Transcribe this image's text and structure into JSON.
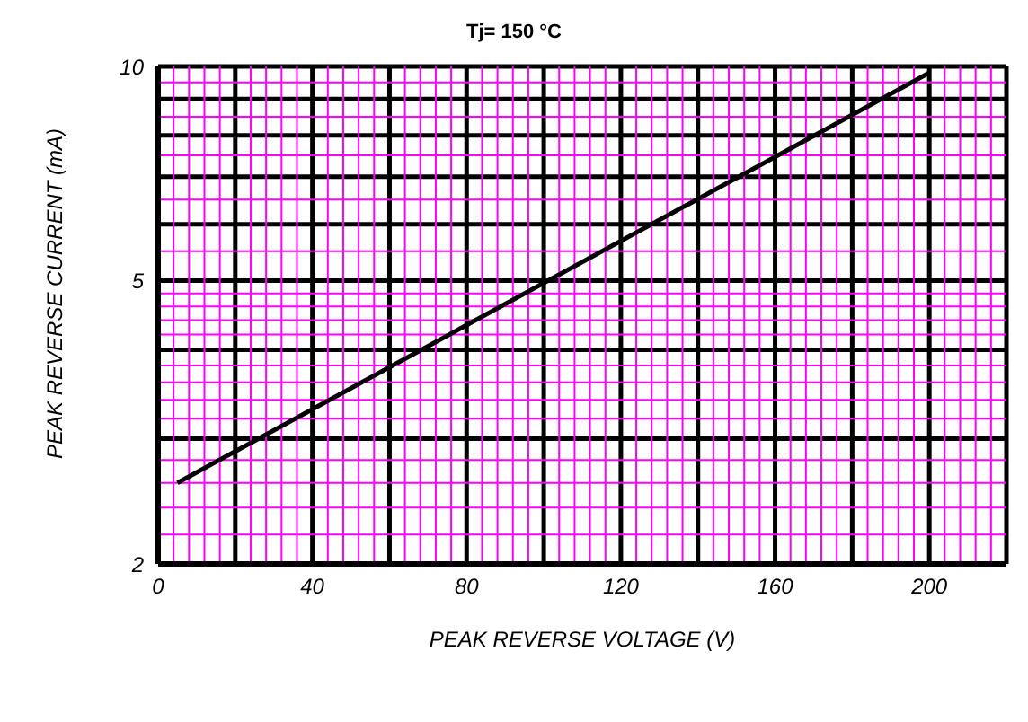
{
  "chart_data": {
    "type": "line",
    "title": "Tj= 150 °C",
    "xlabel": "PEAK REVERSE VOLTAGE (V)",
    "ylabel": "PEAK REVERSE CURRENT (mA)",
    "log": "y",
    "grid": true,
    "xlim": [
      0,
      220
    ],
    "xticks": [
      0,
      {
        "value": 20,
        "label": null
      },
      40,
      {
        "value": 60,
        "label": null
      },
      80,
      {
        "value": 100,
        "label": null
      },
      120,
      {
        "value": 140,
        "label": null
      },
      160,
      {
        "value": 180,
        "label": null
      },
      200,
      {
        "value": 220,
        "label": null
      }
    ],
    "ylim": [
      2,
      10
    ],
    "yticks": [
      2,
      {
        "value": 3,
        "label": null
      },
      {
        "value": 4,
        "label": null
      },
      5,
      {
        "value": 6,
        "label": null
      },
      {
        "value": 7,
        "label": null
      },
      {
        "value": 8,
        "label": null
      },
      {
        "value": 9,
        "label": null
      },
      10
    ],
    "ref_lines": [
      {
        "axis": "x",
        "value": 4,
        "color": "#ff00ff"
      },
      {
        "axis": "x",
        "value": 8,
        "color": "#ff00ff"
      },
      {
        "axis": "x",
        "value": 12,
        "color": "#ff00ff"
      },
      {
        "axis": "x",
        "value": 16,
        "color": "#ff00ff"
      },
      {
        "axis": "x",
        "value": 24,
        "color": "#ff00ff"
      },
      {
        "axis": "x",
        "value": 28,
        "color": "#ff00ff"
      },
      {
        "axis": "x",
        "value": 32,
        "color": "#ff00ff"
      },
      {
        "axis": "x",
        "value": 36,
        "color": "#ff00ff"
      },
      {
        "axis": "x",
        "value": 44,
        "color": "#ff00ff"
      },
      {
        "axis": "x",
        "value": 48,
        "color": "#ff00ff"
      },
      {
        "axis": "x",
        "value": 52,
        "color": "#ff00ff"
      },
      {
        "axis": "x",
        "value": 56,
        "color": "#ff00ff"
      },
      {
        "axis": "x",
        "value": 64,
        "color": "#ff00ff"
      },
      {
        "axis": "x",
        "value": 68,
        "color": "#ff00ff"
      },
      {
        "axis": "x",
        "value": 72,
        "color": "#ff00ff"
      },
      {
        "axis": "x",
        "value": 76,
        "color": "#ff00ff"
      },
      {
        "axis": "x",
        "value": 84,
        "color": "#ff00ff"
      },
      {
        "axis": "x",
        "value": 88,
        "color": "#ff00ff"
      },
      {
        "axis": "x",
        "value": 92,
        "color": "#ff00ff"
      },
      {
        "axis": "x",
        "value": 96,
        "color": "#ff00ff"
      },
      {
        "axis": "x",
        "value": 104,
        "color": "#ff00ff"
      },
      {
        "axis": "x",
        "value": 108,
        "color": "#ff00ff"
      },
      {
        "axis": "x",
        "value": 112,
        "color": "#ff00ff"
      },
      {
        "axis": "x",
        "value": 116,
        "color": "#ff00ff"
      },
      {
        "axis": "x",
        "value": 124,
        "color": "#ff00ff"
      },
      {
        "axis": "x",
        "value": 128,
        "color": "#ff00ff"
      },
      {
        "axis": "x",
        "value": 132,
        "color": "#ff00ff"
      },
      {
        "axis": "x",
        "value": 136,
        "color": "#ff00ff"
      },
      {
        "axis": "x",
        "value": 144,
        "color": "#ff00ff"
      },
      {
        "axis": "x",
        "value": 148,
        "color": "#ff00ff"
      },
      {
        "axis": "x",
        "value": 152,
        "color": "#ff00ff"
      },
      {
        "axis": "x",
        "value": 156,
        "color": "#ff00ff"
      },
      {
        "axis": "x",
        "value": 164,
        "color": "#ff00ff"
      },
      {
        "axis": "x",
        "value": 168,
        "color": "#ff00ff"
      },
      {
        "axis": "x",
        "value": 172,
        "color": "#ff00ff"
      },
      {
        "axis": "x",
        "value": 176,
        "color": "#ff00ff"
      },
      {
        "axis": "x",
        "value": 184,
        "color": "#ff00ff"
      },
      {
        "axis": "x",
        "value": 188,
        "color": "#ff00ff"
      },
      {
        "axis": "x",
        "value": 192,
        "color": "#ff00ff"
      },
      {
        "axis": "x",
        "value": 196,
        "color": "#ff00ff"
      },
      {
        "axis": "x",
        "value": 204,
        "color": "#ff00ff"
      },
      {
        "axis": "x",
        "value": 208,
        "color": "#ff00ff"
      },
      {
        "axis": "x",
        "value": 212,
        "color": "#ff00ff"
      },
      {
        "axis": "x",
        "value": 216,
        "color": "#ff00ff"
      },
      {
        "axis": "y",
        "value": 2.2,
        "color": "#ff00ff"
      },
      {
        "axis": "y",
        "value": 2.4,
        "color": "#ff00ff"
      },
      {
        "axis": "y",
        "value": 2.6,
        "color": "#ff00ff"
      },
      {
        "axis": "y",
        "value": 2.8,
        "color": "#ff00ff"
      },
      {
        "axis": "y",
        "value": 3.2,
        "color": "#ff00ff"
      },
      {
        "axis": "y",
        "value": 3.4,
        "color": "#ff00ff"
      },
      {
        "axis": "y",
        "value": 3.6,
        "color": "#ff00ff"
      },
      {
        "axis": "y",
        "value": 3.8,
        "color": "#ff00ff"
      },
      {
        "axis": "y",
        "value": 4.2,
        "color": "#ff00ff"
      },
      {
        "axis": "y",
        "value": 4.4,
        "color": "#ff00ff"
      },
      {
        "axis": "y",
        "value": 4.6,
        "color": "#ff00ff"
      },
      {
        "axis": "y",
        "value": 4.8,
        "color": "#ff00ff"
      },
      {
        "axis": "y",
        "value": 5.5,
        "color": "#ff00ff"
      },
      {
        "axis": "y",
        "value": 6.5,
        "color": "#ff00ff"
      },
      {
        "axis": "y",
        "value": 7.5,
        "color": "#ff00ff"
      },
      {
        "axis": "y",
        "value": 8.5,
        "color": "#ff00ff"
      },
      {
        "axis": "y",
        "value": 9.5,
        "color": "#ff00ff"
      }
    ],
    "series": [
      {
        "color": "#000000",
        "x": [
          5,
          200
        ],
        "values": [
          2.6,
          9.8
        ]
      }
    ]
  }
}
